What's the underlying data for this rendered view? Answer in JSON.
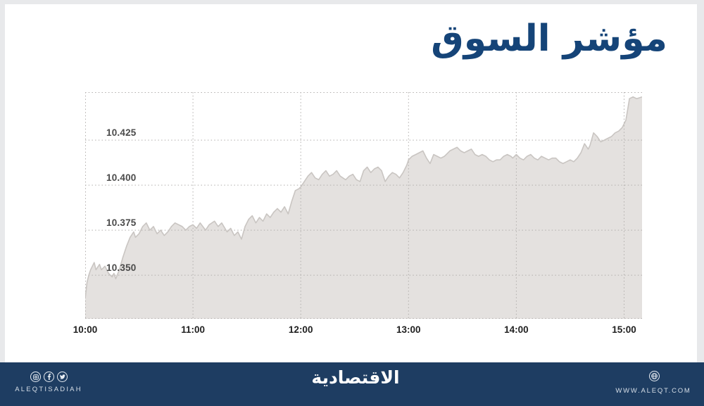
{
  "title": "مؤشر السوق",
  "colors": {
    "brand_navy": "#154478",
    "footer_navy": "#1e3d62",
    "area_fill": "#e4e1df",
    "area_line": "#c9c5c2",
    "grid": "#b1aeac",
    "y_label": "#4a4a4a",
    "x_label": "#1f1f1f"
  },
  "footer": {
    "brand_latin": "ALEQTISADIAH",
    "brand_arabic": "الاقتصادية",
    "website": "WWW.ALEQT.COM",
    "social_icons": [
      "instagram-icon",
      "facebook-icon",
      "twitter-icon"
    ],
    "website_icon": "globe-icon"
  },
  "chart_data": {
    "type": "area",
    "title": "مؤشر السوق",
    "xlabel": "",
    "ylabel": "",
    "grid": "dotted",
    "legend": "none",
    "x_axis": {
      "labels": [
        "10:00",
        "11:00",
        "12:00",
        "13:00",
        "14:00",
        "15:00"
      ],
      "label_minutes": [
        0,
        60,
        120,
        180,
        240,
        300
      ],
      "range_minutes": [
        0,
        310
      ]
    },
    "y_axis": {
      "ticks": [
        10.35,
        10.375,
        10.4,
        10.425
      ],
      "tick_labels": [
        "10.350",
        "10.375",
        "10.400",
        "10.425"
      ],
      "range": [
        10.3258,
        10.4516
      ]
    },
    "series": [
      {
        "name": "market-index",
        "points": [
          [
            0,
            10.337
          ],
          [
            1,
            10.346
          ],
          [
            2,
            10.35
          ],
          [
            3,
            10.353
          ],
          [
            5,
            10.357
          ],
          [
            6,
            10.353
          ],
          [
            8,
            10.356
          ],
          [
            9,
            10.353
          ],
          [
            11,
            10.355
          ],
          [
            13,
            10.351
          ],
          [
            15,
            10.349
          ],
          [
            16,
            10.351
          ],
          [
            17,
            10.348
          ],
          [
            19,
            10.353
          ],
          [
            21,
            10.36
          ],
          [
            23,
            10.366
          ],
          [
            25,
            10.371
          ],
          [
            27,
            10.374
          ],
          [
            28,
            10.371
          ],
          [
            30,
            10.373
          ],
          [
            32,
            10.377
          ],
          [
            34,
            10.379
          ],
          [
            36,
            10.375
          ],
          [
            38,
            10.377
          ],
          [
            40,
            10.373
          ],
          [
            42,
            10.375
          ],
          [
            44,
            10.372
          ],
          [
            46,
            10.374
          ],
          [
            48,
            10.377
          ],
          [
            50,
            10.379
          ],
          [
            52,
            10.378
          ],
          [
            54,
            10.377
          ],
          [
            56,
            10.375
          ],
          [
            58,
            10.377
          ],
          [
            60,
            10.378
          ],
          [
            62,
            10.376
          ],
          [
            64,
            10.379
          ],
          [
            67,
            10.375
          ],
          [
            69,
            10.378
          ],
          [
            72,
            10.38
          ],
          [
            74,
            10.377
          ],
          [
            76,
            10.379
          ],
          [
            79,
            10.374
          ],
          [
            81,
            10.376
          ],
          [
            83,
            10.372
          ],
          [
            85,
            10.374
          ],
          [
            87,
            10.37
          ],
          [
            89,
            10.377
          ],
          [
            91,
            10.381
          ],
          [
            93,
            10.383
          ],
          [
            95,
            10.379
          ],
          [
            97,
            10.382
          ],
          [
            99,
            10.38
          ],
          [
            101,
            10.384
          ],
          [
            103,
            10.382
          ],
          [
            105,
            10.385
          ],
          [
            107,
            10.387
          ],
          [
            109,
            10.385
          ],
          [
            111,
            10.388
          ],
          [
            113,
            10.384
          ],
          [
            115,
            10.391
          ],
          [
            117,
            10.397
          ],
          [
            119,
            10.398
          ],
          [
            120,
            10.399
          ],
          [
            122,
            10.402
          ],
          [
            124,
            10.405
          ],
          [
            126,
            10.407
          ],
          [
            128,
            10.404
          ],
          [
            130,
            10.403
          ],
          [
            132,
            10.406
          ],
          [
            134,
            10.408
          ],
          [
            136,
            10.405
          ],
          [
            138,
            10.406
          ],
          [
            140,
            10.408
          ],
          [
            142,
            10.405
          ],
          [
            145,
            10.403
          ],
          [
            147,
            10.405
          ],
          [
            149,
            10.406
          ],
          [
            151,
            10.403
          ],
          [
            153,
            10.402
          ],
          [
            155,
            10.408
          ],
          [
            157,
            10.41
          ],
          [
            159,
            10.407
          ],
          [
            161,
            10.409
          ],
          [
            163,
            10.41
          ],
          [
            165,
            10.408
          ],
          [
            167,
            10.402
          ],
          [
            169,
            10.405
          ],
          [
            171,
            10.407
          ],
          [
            173,
            10.406
          ],
          [
            175,
            10.404
          ],
          [
            177,
            10.407
          ],
          [
            179,
            10.411
          ],
          [
            180,
            10.414
          ],
          [
            182,
            10.416
          ],
          [
            184,
            10.417
          ],
          [
            186,
            10.418
          ],
          [
            188,
            10.419
          ],
          [
            190,
            10.415
          ],
          [
            192,
            10.412
          ],
          [
            194,
            10.417
          ],
          [
            196,
            10.416
          ],
          [
            198,
            10.415
          ],
          [
            200,
            10.416
          ],
          [
            201,
            10.417
          ],
          [
            203,
            10.419
          ],
          [
            205,
            10.42
          ],
          [
            207,
            10.421
          ],
          [
            209,
            10.419
          ],
          [
            211,
            10.418
          ],
          [
            213,
            10.419
          ],
          [
            215,
            10.42
          ],
          [
            217,
            10.417
          ],
          [
            219,
            10.416
          ],
          [
            221,
            10.417
          ],
          [
            223,
            10.416
          ],
          [
            225,
            10.414
          ],
          [
            227,
            10.413
          ],
          [
            229,
            10.414
          ],
          [
            231,
            10.414
          ],
          [
            233,
            10.416
          ],
          [
            235,
            10.417
          ],
          [
            237,
            10.416
          ],
          [
            238,
            10.415
          ],
          [
            240,
            10.417
          ],
          [
            242,
            10.415
          ],
          [
            244,
            10.414
          ],
          [
            246,
            10.416
          ],
          [
            248,
            10.417
          ],
          [
            250,
            10.415
          ],
          [
            252,
            10.414
          ],
          [
            254,
            10.416
          ],
          [
            256,
            10.415
          ],
          [
            258,
            10.414
          ],
          [
            260,
            10.415
          ],
          [
            262,
            10.415
          ],
          [
            264,
            10.413
          ],
          [
            266,
            10.412
          ],
          [
            268,
            10.413
          ],
          [
            270,
            10.414
          ],
          [
            272,
            10.413
          ],
          [
            274,
            10.415
          ],
          [
            276,
            10.418
          ],
          [
            278,
            10.423
          ],
          [
            280,
            10.42
          ],
          [
            281,
            10.422
          ],
          [
            283,
            10.429
          ],
          [
            285,
            10.427
          ],
          [
            287,
            10.424
          ],
          [
            289,
            10.425
          ],
          [
            291,
            10.426
          ],
          [
            293,
            10.427
          ],
          [
            295,
            10.429
          ],
          [
            297,
            10.43
          ],
          [
            299,
            10.432
          ],
          [
            301,
            10.436
          ],
          [
            302,
            10.442
          ],
          [
            303,
            10.448
          ],
          [
            305,
            10.449
          ],
          [
            307,
            10.448
          ],
          [
            310,
            10.449
          ]
        ]
      }
    ]
  }
}
